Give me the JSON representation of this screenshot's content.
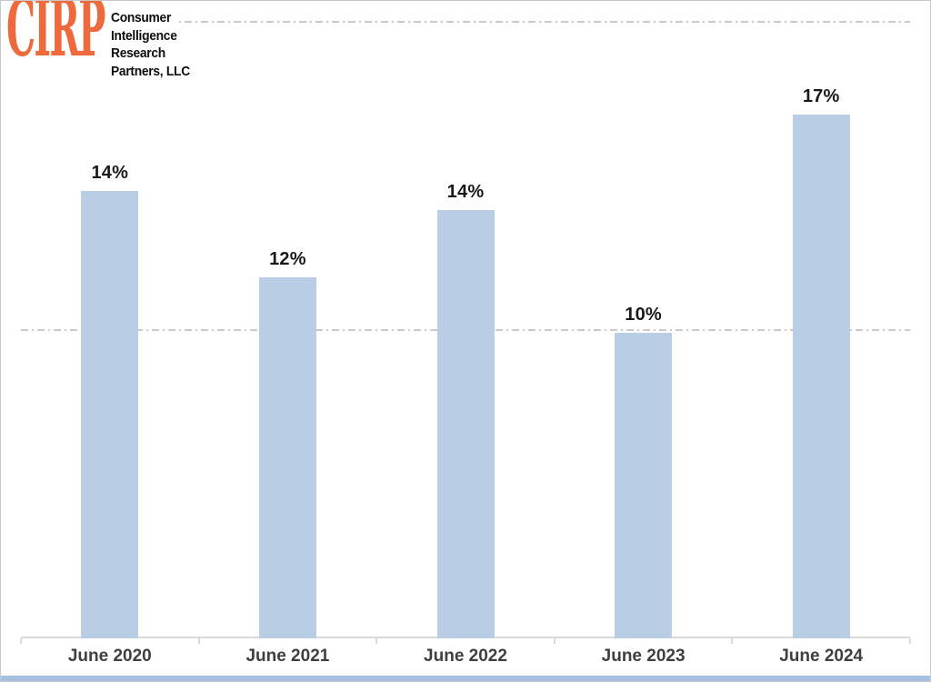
{
  "logo": {
    "acronym": "CIRP",
    "name_lines": [
      "Consumer",
      "Intelligence",
      "Research",
      "Partners, LLC"
    ],
    "brand_color": "#ee6a3c"
  },
  "chart_data": {
    "type": "bar",
    "categories": [
      "June 2020",
      "June 2021",
      "June 2022",
      "June 2023",
      "June 2024"
    ],
    "values": [
      14,
      12,
      14,
      10,
      17
    ],
    "values_precise_est": [
      14.5,
      11.7,
      13.9,
      9.9,
      17.0
    ],
    "value_labels": [
      "14%",
      "12%",
      "14%",
      "10%",
      "17%"
    ],
    "title": "",
    "xlabel": "",
    "ylabel": "",
    "ylim": [
      0,
      20
    ],
    "gridlines_pct": [
      10,
      20
    ],
    "grid_style": "dash-dot",
    "legend_position": "none",
    "theme": {
      "bar_color": "#b9cde4",
      "grid_color": "#c9c9c9",
      "axis_color": "#d9d9d9",
      "value_label_color": "#191919",
      "axis_label_color": "#3f3f3f",
      "accent_strip_color": "#a6c1df",
      "background": "#ffffff"
    }
  }
}
